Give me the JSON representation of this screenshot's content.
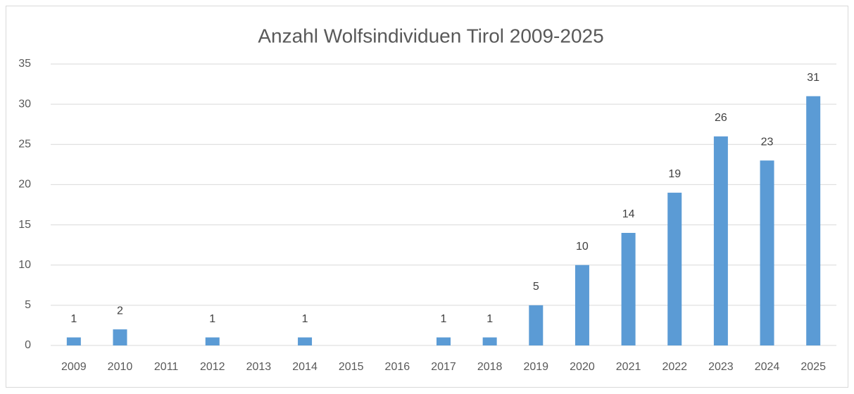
{
  "chart_data": {
    "type": "bar",
    "title": "Anzahl Wolfsindividuen  Tirol 2009-2025",
    "categories": [
      "2009",
      "2010",
      "2011",
      "2012",
      "2013",
      "2014",
      "2015",
      "2016",
      "2017",
      "2018",
      "2019",
      "2020",
      "2021",
      "2022",
      "2023",
      "2024",
      "2025"
    ],
    "values": [
      1,
      2,
      null,
      1,
      null,
      1,
      null,
      null,
      1,
      1,
      5,
      10,
      14,
      19,
      26,
      23,
      31
    ],
    "color": "#5b9bd5",
    "ylim": [
      0,
      35
    ],
    "yticks": [
      0,
      5,
      10,
      15,
      20,
      25,
      30,
      35
    ],
    "grid": true
  }
}
